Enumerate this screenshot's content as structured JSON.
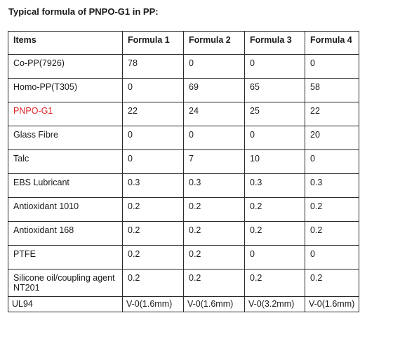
{
  "title": "Typical formula of PNPO-G1 in PP:",
  "table": {
    "headers": [
      "Items",
      "Formula 1",
      "Formula 2",
      "Formula 3",
      "Formula 4"
    ],
    "rows": [
      {
        "item": "Co-PP(7926)",
        "values": [
          "78",
          "0",
          "0",
          "0"
        ]
      },
      {
        "item": "Homo-PP(T305)",
        "values": [
          "0",
          "69",
          "65",
          "58"
        ]
      },
      {
        "item": "PNPO-G1",
        "values": [
          "22",
          "24",
          "25",
          "22"
        ]
      },
      {
        "item": "Glass Fibre",
        "values": [
          "0",
          "0",
          "0",
          "20"
        ]
      },
      {
        "item": "Talc",
        "values": [
          "0",
          "7",
          "10",
          "0"
        ]
      },
      {
        "item": "EBS Lubricant",
        "values": [
          "0.3",
          "0.3",
          "0.3",
          "0.3"
        ]
      },
      {
        "item": "Antioxidant 1010",
        "values": [
          "0.2",
          "0.2",
          "0.2",
          "0.2"
        ]
      },
      {
        "item": "Antioxidant 168",
        "values": [
          "0.2",
          "0.2",
          "0.2",
          "0.2"
        ]
      },
      {
        "item": "PTFE",
        "values": [
          "0.2",
          "0.2",
          "0",
          "0"
        ]
      },
      {
        "item": "Silicone oil/coupling agent NT201",
        "values": [
          "0.2",
          "0.2",
          "0.2",
          "0.2"
        ]
      },
      {
        "item": "UL94",
        "values": [
          "V-0(1.6mm)",
          "V-0(1.6mm)",
          "V-0(3.2mm)",
          "V-0(1.6mm)"
        ]
      }
    ]
  },
  "colors": {
    "text": "#1a1a1a",
    "highlight": "#e02020",
    "border": "#2a2a2a"
  }
}
